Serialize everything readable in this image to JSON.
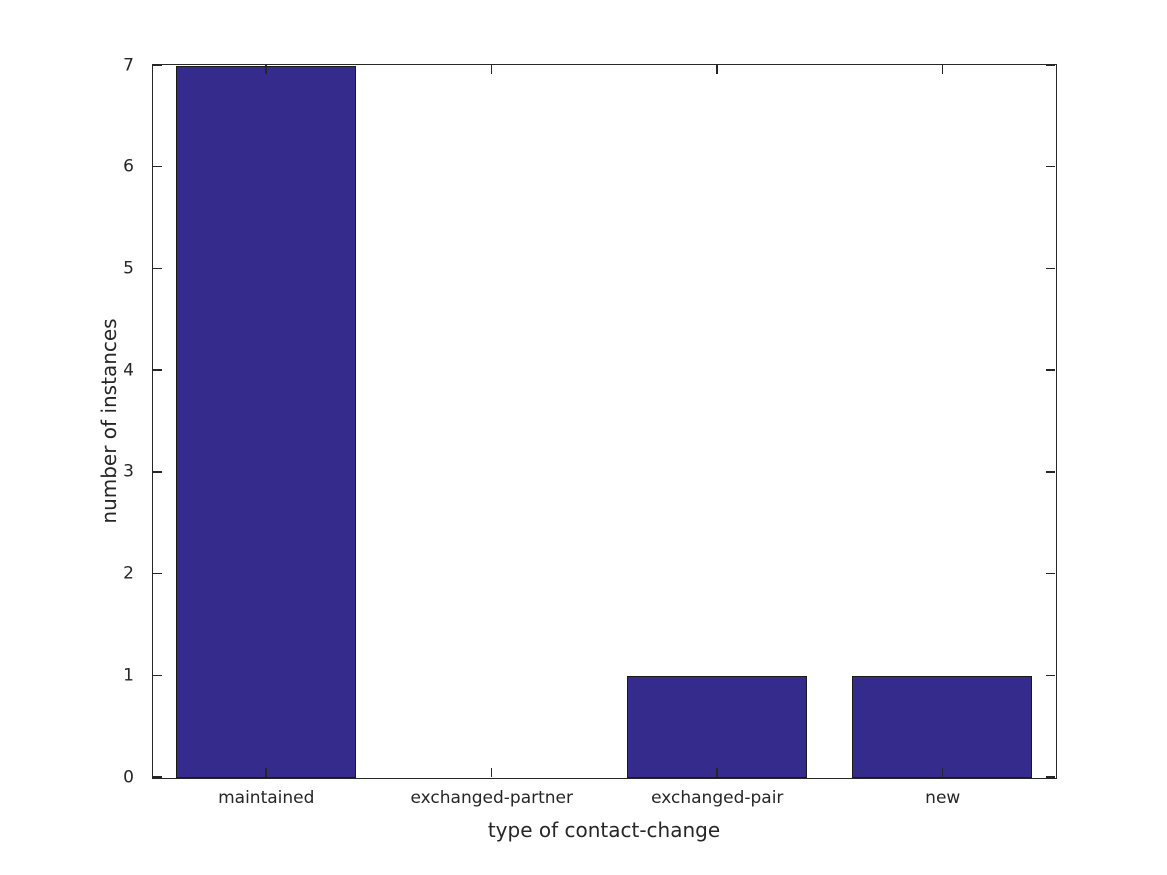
{
  "chart_data": {
    "type": "bar",
    "categories": [
      "maintained",
      "exchanged-partner",
      "exchanged-pair",
      "new"
    ],
    "values": [
      7,
      0,
      1,
      1
    ],
    "xlabel": "type of contact-change",
    "ylabel": "number of instances",
    "ylim": [
      0,
      7
    ],
    "yticks": [
      0,
      1,
      2,
      3,
      4,
      5,
      6,
      7
    ],
    "bar_width_fraction": 0.8,
    "grid": false,
    "legend": "none",
    "tick_direction": "in",
    "colors": {
      "bar_fill": "#352b8c",
      "bar_edge": "#1a1a1a",
      "axis": "#262626",
      "text": "#262626",
      "background": "#ffffff"
    }
  }
}
